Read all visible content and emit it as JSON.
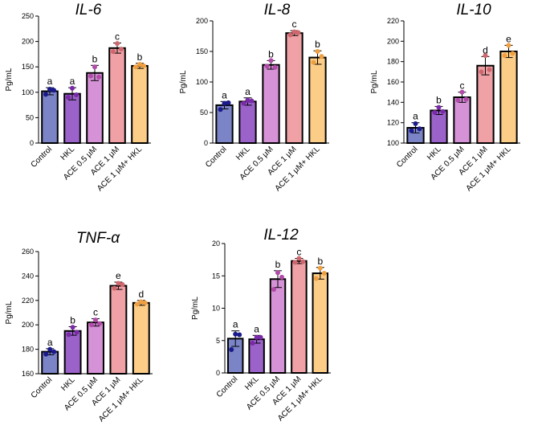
{
  "colors": {
    "Control": "#7b84c7",
    "HKL": "#9b63c9",
    "ACE 0.5 μM": "#d592d6",
    "ACE 1 μM": "#efa1a6",
    "ACE 1 μM+ HKL": "#fccd87",
    "Control_dot": "#1a1a8c",
    "HKL_dot": "#7a2aa8",
    "ACE 0.5 μM_dot": "#b14aa8",
    "ACE 1 μM_dot": "#d0676e",
    "ACE 1 μM+ HKL_dot": "#f0a040"
  },
  "chart_data": [
    {
      "type": "bar",
      "title": "IL-6",
      "ylabel": "Pg/mL",
      "categories": [
        "Control",
        "HKL",
        "ACE 0.5 μM",
        "ACE 1 μM",
        "ACE 1 μM+ HKL"
      ],
      "values": [
        102,
        97,
        138,
        187,
        152
      ],
      "errors": [
        7,
        12,
        15,
        10,
        5
      ],
      "letters": [
        "a",
        "a",
        "b",
        "c",
        "b"
      ],
      "points": [
        [
          106,
          96,
          104
        ],
        [
          108,
          90,
          95
        ],
        [
          150,
          132,
          130
        ],
        [
          196,
          180,
          185
        ],
        [
          155,
          150,
          152
        ]
      ],
      "ylim": [
        0,
        250
      ],
      "yticks": [
        0,
        50,
        100,
        150,
        200,
        250
      ]
    },
    {
      "type": "bar",
      "title": "IL-8",
      "ylabel": "Pg/mL",
      "categories": [
        "Control",
        "HKL",
        "ACE 0.5 μM",
        "ACE 1 μM",
        "ACE 1 μM+ HKL"
      ],
      "values": [
        62,
        68,
        128,
        180,
        140
      ],
      "errors": [
        6,
        6,
        7,
        4,
        11
      ],
      "letters": [
        "a",
        "a",
        "b",
        "c",
        "b"
      ],
      "points": [
        [
          65,
          55,
          66
        ],
        [
          70,
          65,
          69
        ],
        [
          135,
          126,
          124
        ],
        [
          182,
          177,
          181
        ],
        [
          150,
          132,
          142
        ]
      ],
      "ylim": [
        0,
        200
      ],
      "yticks": [
        0,
        50,
        100,
        150,
        200
      ]
    },
    {
      "type": "bar",
      "title": "IL-10",
      "ylabel": "Pg/mL",
      "categories": [
        "Control",
        "HKL",
        "ACE 0.5 μM",
        "ACE 1 μM",
        "ACE 1 μM+ HKL"
      ],
      "values": [
        115,
        132,
        145,
        176,
        190
      ],
      "errors": [
        5,
        4,
        5,
        9,
        6
      ],
      "letters": [
        "a",
        "b",
        "c",
        "d",
        "e"
      ],
      "points": [
        [
          119,
          112,
          114
        ],
        [
          135,
          130,
          131
        ],
        [
          150,
          142,
          143
        ],
        [
          186,
          170,
          172
        ],
        [
          196,
          186,
          188
        ]
      ],
      "ylim": [
        100,
        220
      ],
      "yticks": [
        100,
        120,
        140,
        160,
        180,
        200,
        220
      ]
    },
    {
      "type": "bar",
      "title": "TNF-α",
      "ylabel": "Pg/mL",
      "categories": [
        "Control",
        "HKL",
        "ACE 0.5 μM",
        "ACE 1 μM",
        "ACE 1 μM+ HKL"
      ],
      "values": [
        178,
        195,
        202,
        232,
        218
      ],
      "errors": [
        2.5,
        3.5,
        3,
        3,
        2
      ],
      "letters": [
        "a",
        "b",
        "c",
        "e",
        "d"
      ],
      "points": [
        [
          180,
          176,
          178
        ],
        [
          198,
          192,
          194
        ],
        [
          204,
          200,
          201
        ],
        [
          234,
          230,
          233
        ],
        [
          219,
          217,
          218
        ]
      ],
      "ylim": [
        160,
        260
      ],
      "yticks": [
        160,
        180,
        200,
        220,
        240,
        260
      ]
    },
    {
      "type": "bar",
      "title": "IL-12",
      "ylabel": "Pg/mL",
      "categories": [
        "Control",
        "HKL",
        "ACE 0.5 μM",
        "ACE 1 μM",
        "ACE 1 μM+ HKL"
      ],
      "values": [
        5.3,
        5.2,
        14.5,
        17.3,
        15.4
      ],
      "errors": [
        1.2,
        0.6,
        1.3,
        0.4,
        0.9
      ],
      "letters": [
        "a",
        "a",
        "b",
        "c",
        "b"
      ],
      "points": [
        [
          6,
          3.6,
          5.9
        ],
        [
          5.5,
          4.6,
          5.5
        ],
        [
          15.5,
          12.9,
          14.8
        ],
        [
          17.7,
          17.1,
          17.2
        ],
        [
          16.2,
          14.6,
          15.4
        ]
      ],
      "ylim": [
        0,
        20
      ],
      "yticks": [
        0,
        5,
        10,
        15,
        20
      ]
    }
  ]
}
